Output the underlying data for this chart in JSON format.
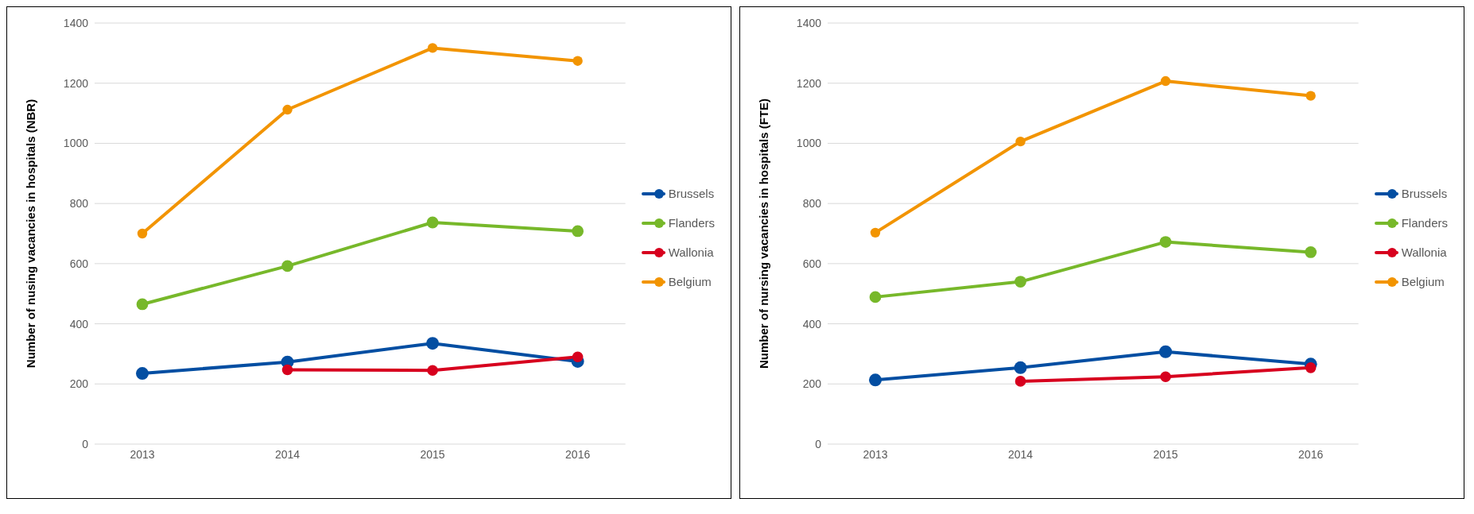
{
  "chart_data": [
    {
      "type": "line",
      "ylabel": "Number of nusing vacancies in hospitals (NBR)",
      "categories": [
        "2013",
        "2014",
        "2015",
        "2016"
      ],
      "ylim": [
        0,
        1400
      ],
      "yticks": [
        0,
        200,
        400,
        600,
        800,
        1000,
        1200,
        1400
      ],
      "grid": "y",
      "legend": "right",
      "marker": "circle",
      "series": [
        {
          "name": "Brussels",
          "color": "#034ea2",
          "values": [
            235,
            273,
            335,
            275
          ]
        },
        {
          "name": "Flanders",
          "color": "#77b82a",
          "values": [
            465,
            592,
            737,
            708
          ]
        },
        {
          "name": "Wallonia",
          "color": "#d7001e",
          "values": [
            null,
            247,
            245,
            290
          ]
        },
        {
          "name": "Belgium",
          "color": "#f29400",
          "values": [
            700,
            1112,
            1317,
            1274
          ]
        }
      ]
    },
    {
      "type": "line",
      "ylabel": "Number of nursing vacancies in hospitals (FTE)",
      "categories": [
        "2013",
        "2014",
        "2015",
        "2016"
      ],
      "ylim": [
        0,
        1400
      ],
      "yticks": [
        0,
        200,
        400,
        600,
        800,
        1000,
        1200,
        1400
      ],
      "grid": "y",
      "legend": "right",
      "marker": "circle",
      "series": [
        {
          "name": "Brussels",
          "color": "#034ea2",
          "values": [
            213,
            254,
            307,
            266
          ]
        },
        {
          "name": "Flanders",
          "color": "#77b82a",
          "values": [
            489,
            540,
            672,
            638
          ]
        },
        {
          "name": "Wallonia",
          "color": "#d7001e",
          "values": [
            null,
            209,
            224,
            254
          ]
        },
        {
          "name": "Belgium",
          "color": "#f29400",
          "values": [
            703,
            1006,
            1207,
            1158
          ]
        }
      ]
    }
  ]
}
